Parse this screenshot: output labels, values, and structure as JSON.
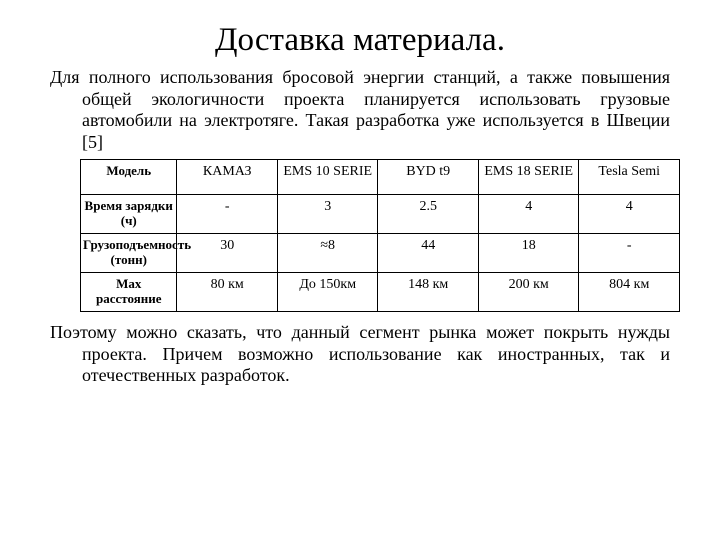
{
  "title": "Доставка материала.",
  "intro": "Для полного использования бросовой энергии станций, а также повышения общей экологичности проекта планируется использовать грузовые автомобили на электротяге. Такая разработка уже используется в Швеции [5]",
  "table": {
    "type": "table",
    "columns": [
      "Модель",
      "КАМАЗ",
      "EMS 10 SERIE",
      "BYD t9",
      "EMS 18 SERIE",
      "Tesla Semi"
    ],
    "rows": [
      {
        "header": "Время зарядки (ч)",
        "cells": [
          "-",
          "3",
          "2.5",
          "4",
          "4"
        ]
      },
      {
        "header": "Грузоподъемность (тонн)",
        "cells": [
          "30",
          "≈8",
          "44",
          "18",
          "-"
        ]
      },
      {
        "header": "Max расстояние",
        "cells": [
          "80 км",
          "До 150км",
          "148 км",
          "200 км",
          "804 км"
        ]
      }
    ],
    "border_color": "#000000",
    "header_font_weight": "bold",
    "cell_fontsize": 14,
    "background_color": "#ffffff"
  },
  "outro": "Поэтому  можно сказать, что данный сегмент рынка может покрыть нужды проекта. Причем возможно использование как иностранных, так и отечественных разработок."
}
